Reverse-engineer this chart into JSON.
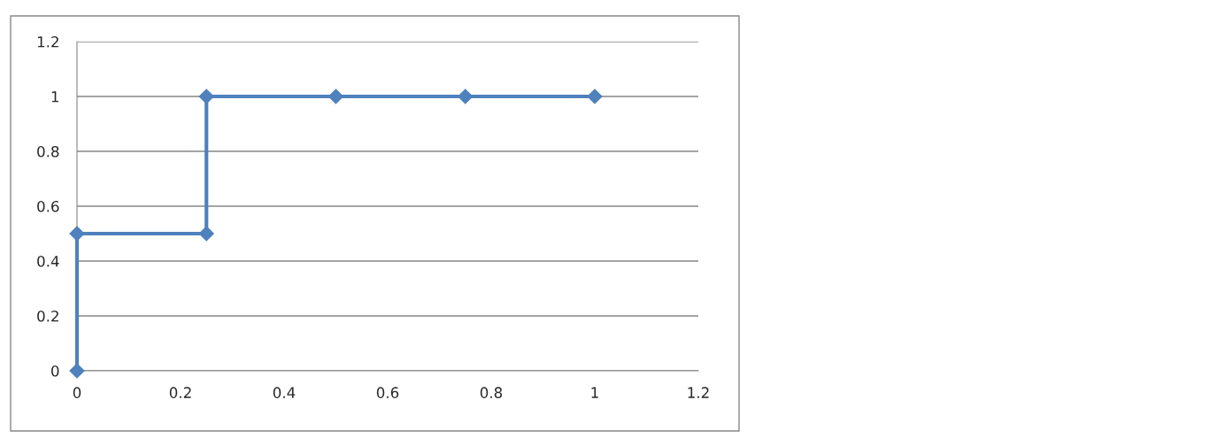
{
  "chart_data": {
    "type": "line",
    "x": [
      0,
      0,
      0.25,
      0.25,
      0.5,
      0.75,
      1
    ],
    "series": [
      {
        "color": "#4f81bd",
        "values": [
          0,
          0.5,
          0.5,
          1,
          1,
          1,
          1
        ]
      }
    ],
    "xlim": [
      0,
      1.2
    ],
    "xticks": [
      0,
      0.2,
      0.4,
      0.6,
      0.8,
      1,
      1.2
    ],
    "ylim": [
      0,
      1.2
    ],
    "yticks": [
      0,
      0.2,
      0.4,
      0.6,
      0.8,
      1,
      1.2
    ],
    "grid": "y",
    "marker": "diamond",
    "line_style": "solid"
  }
}
